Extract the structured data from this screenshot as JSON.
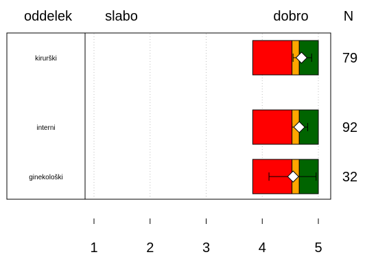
{
  "chart_data": {
    "type": "bar",
    "header": {
      "group": "oddelek",
      "low": "slabo",
      "high": "dobro",
      "count": "N"
    },
    "xlim": [
      1,
      5
    ],
    "ticks": [
      1,
      2,
      3,
      4,
      5
    ],
    "tick_labels": [
      "1",
      "2",
      "3",
      "4",
      "5"
    ],
    "grid": "vertical dotted",
    "colors": {
      "low_segment": "#FF0000",
      "mid_segment": "#FFA500",
      "high_segment": "#006400",
      "mean_marker": "#FFFFFF"
    },
    "rows": [
      {
        "label": "kirurški",
        "n": "79",
        "bar_start": 3.83,
        "seg1_end": 4.53,
        "seg2_end": 4.66,
        "bar_end": 5.0,
        "mean": 4.7,
        "err_low": 4.55,
        "err_high": 4.88
      },
      {
        "label": "interni",
        "n": "92",
        "bar_start": 3.83,
        "seg1_end": 4.53,
        "seg2_end": 4.66,
        "bar_end": 5.0,
        "mean": 4.66,
        "err_low": 4.53,
        "err_high": 4.81
      },
      {
        "label": "ginekološki",
        "n": "32",
        "bar_start": 3.83,
        "seg1_end": 4.53,
        "seg2_end": 4.66,
        "bar_end": 5.0,
        "mean": 4.55,
        "err_low": 4.12,
        "err_high": 4.96
      }
    ]
  }
}
